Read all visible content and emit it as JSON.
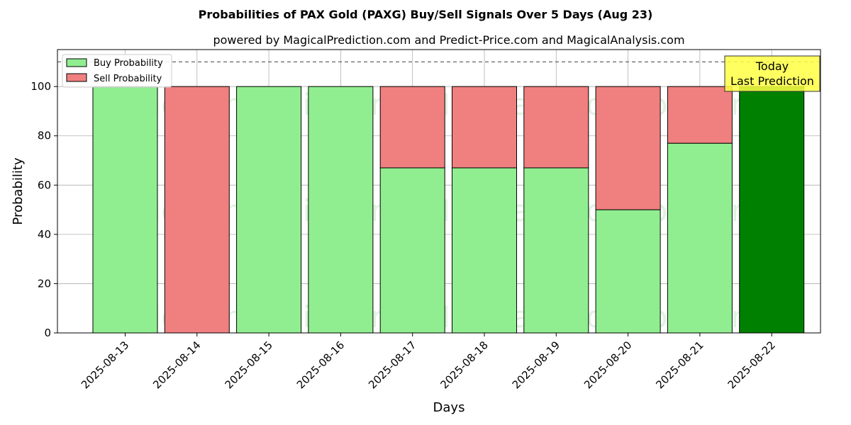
{
  "chart_data": {
    "type": "bar",
    "stacked": true,
    "title": "Probabilities of PAX Gold (PAXG) Buy/Sell Signals Over 5 Days (Aug 23)",
    "subtitle": "powered by MagicalPrediction.com and Predict-Price.com and MagicalAnalysis.com",
    "xlabel": "Days",
    "ylabel": "Probability",
    "ylim": [
      0,
      115
    ],
    "yticks": [
      "0",
      "20",
      "40",
      "60",
      "80",
      "100"
    ],
    "grid": true,
    "legend_position": "top-left",
    "reference_line": {
      "y": 110,
      "style": "dashed"
    },
    "categories": [
      "2025-08-13",
      "2025-08-14",
      "2025-08-15",
      "2025-08-16",
      "2025-08-17",
      "2025-08-18",
      "2025-08-19",
      "2025-08-20",
      "2025-08-21",
      "2025-08-22"
    ],
    "series": [
      {
        "name": "Buy Probability",
        "color": "#90ee90",
        "values": [
          100,
          0,
          100,
          100,
          67,
          67,
          67,
          50,
          77,
          100
        ]
      },
      {
        "name": "Sell Probability",
        "color": "#f08080",
        "values": [
          0,
          100,
          0,
          0,
          33,
          33,
          33,
          50,
          23,
          0
        ]
      }
    ],
    "highlight": {
      "index": 9,
      "color": "#008000"
    },
    "annotation": {
      "lines": [
        "Today",
        "Last Prediction"
      ],
      "background": "#ffff44"
    },
    "watermarks": [
      "MagicalAnalysis.com",
      "MagicalPrediction.com"
    ]
  }
}
